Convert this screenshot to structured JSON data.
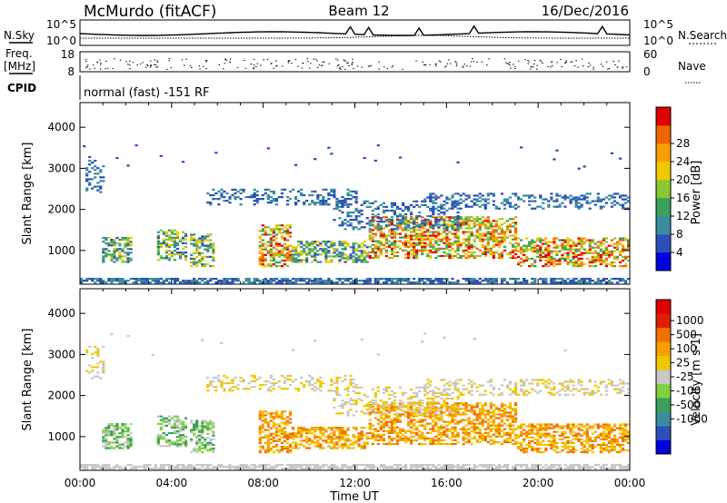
{
  "header": {
    "station": "McMurdo (fitACF)",
    "beam": "Beam 12",
    "date": "16/Dec/2016"
  },
  "noise_panel": {
    "left_label": "N.Sky",
    "right_label": "N.Search",
    "left_ticks": [
      "10^5",
      "10^0"
    ],
    "right_ticks": [
      "10^5",
      "10^0"
    ]
  },
  "freq_panel": {
    "left_label_line1": "Freq.",
    "left_label_line2": "[MHz]",
    "left_ticks": [
      "18",
      "8"
    ],
    "right_label": "Nave",
    "right_ticks": [
      "60",
      "0"
    ]
  },
  "cpid_panel": {
    "label": "CPID",
    "text": "normal (fast) -151 RF"
  },
  "chart_data": [
    {
      "type": "heatmap",
      "title": "",
      "ylabel": "Slant Range [km]",
      "xlabel": "",
      "ylim": [
        180,
        4600
      ],
      "y_ticks": [
        "1000",
        "2000",
        "3000",
        "4000"
      ],
      "colorbar": {
        "label": "Power [dB]",
        "ticks": [
          "4",
          "8",
          "12",
          "16",
          "20",
          "24",
          "28"
        ],
        "colors": [
          "#0000e0",
          "#2a50b8",
          "#3c8ca0",
          "#3aa05a",
          "#88c832",
          "#f0c800",
          "#f8a000",
          "#f06400",
          "#e00000"
        ]
      }
    },
    {
      "type": "heatmap",
      "title": "",
      "ylabel": "Slant Range [km]",
      "xlabel": "Time UT",
      "ylim": [
        180,
        4600
      ],
      "y_ticks": [
        "1000",
        "2000",
        "3000",
        "4000"
      ],
      "x_ticks": [
        "00:00",
        "04:00",
        "08:00",
        "12:00",
        "16:00",
        "20:00",
        "00:00"
      ],
      "colorbar": {
        "label": "Velocity [m s-1]",
        "ticks": [
          "1000",
          "500",
          "100",
          "25",
          "-25",
          "-100",
          "-500",
          "-1000"
        ],
        "colors": [
          "#0000d8",
          "#2a50b8",
          "#3c8ca0",
          "#3aa05a",
          "#80d040",
          "#c8c8c8",
          "#f0c800",
          "#f8a000",
          "#f07000",
          "#e02000",
          "#e00000"
        ]
      }
    }
  ]
}
